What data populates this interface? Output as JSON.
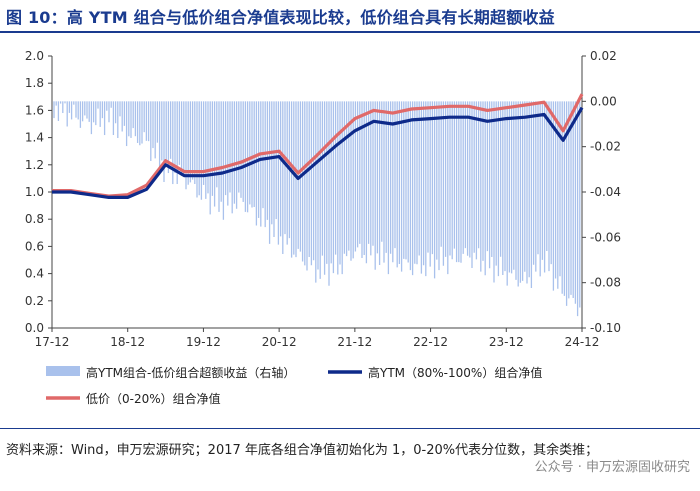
{
  "title": "图 10：高 YTM 组合与低价组合净值表现比较，低价组合具有长期超额收益",
  "source_note": "资料来源：Wind，申万宏源研究；2017 年底各组合净值初始化为 1，0-20%代表分位数，其余类推；",
  "watermark": "公众号 · 申万宏源固收研究",
  "chart_data": {
    "type": "line",
    "x_tick_labels": [
      "17-12",
      "18-12",
      "19-12",
      "20-12",
      "21-12",
      "22-12",
      "23-12",
      "24-12"
    ],
    "y_left": {
      "ticks": [
        "0.0",
        "0.2",
        "0.4",
        "0.6",
        "0.8",
        "1.0",
        "1.2",
        "1.4",
        "1.6",
        "1.8",
        "2.0"
      ],
      "ylim": [
        0,
        2.0
      ]
    },
    "y_right": {
      "ticks": [
        "-0.10",
        "-0.08",
        "-0.06",
        "-0.04",
        "-0.02",
        "0.00",
        "0.02"
      ],
      "ylim": [
        -0.1,
        0.02
      ]
    },
    "x": [
      0,
      0.25,
      0.5,
      0.75,
      1,
      1.25,
      1.5,
      1.75,
      2,
      2.25,
      2.5,
      2.75,
      3,
      3.25,
      3.5,
      3.75,
      4,
      4.25,
      4.5,
      4.75,
      5,
      5.25,
      5.5,
      5.75,
      6,
      6.25,
      6.5,
      6.75,
      7
    ],
    "series": [
      {
        "name": "高YTM组合-低价组合超额收益（右轴）",
        "axis": "right",
        "style": "bar",
        "color": "#a9c1ec",
        "values": [
          -0.002,
          -0.006,
          -0.01,
          -0.008,
          -0.015,
          -0.018,
          -0.03,
          -0.034,
          -0.042,
          -0.046,
          -0.044,
          -0.052,
          -0.06,
          -0.068,
          -0.075,
          -0.074,
          -0.066,
          -0.068,
          -0.07,
          -0.073,
          -0.072,
          -0.07,
          -0.068,
          -0.072,
          -0.076,
          -0.08,
          -0.07,
          -0.085,
          -0.092
        ]
      },
      {
        "name": "高YTM（80%-100%）组合净值",
        "axis": "left",
        "style": "line",
        "color": "#0e2a8a",
        "values": [
          1.0,
          1.0,
          0.98,
          0.96,
          0.96,
          1.02,
          1.2,
          1.12,
          1.12,
          1.14,
          1.18,
          1.24,
          1.26,
          1.1,
          1.22,
          1.34,
          1.45,
          1.52,
          1.5,
          1.53,
          1.54,
          1.55,
          1.55,
          1.52,
          1.54,
          1.55,
          1.57,
          1.38,
          1.62
        ]
      },
      {
        "name": "低价（0-20%）组合净值",
        "axis": "left",
        "style": "line",
        "color": "#e06969",
        "values": [
          1.01,
          1.01,
          0.99,
          0.97,
          0.98,
          1.05,
          1.23,
          1.15,
          1.15,
          1.18,
          1.22,
          1.28,
          1.3,
          1.14,
          1.27,
          1.41,
          1.54,
          1.6,
          1.58,
          1.61,
          1.62,
          1.63,
          1.63,
          1.6,
          1.62,
          1.64,
          1.66,
          1.45,
          1.72
        ]
      }
    ],
    "legend": [
      "高YTM组合-低价组合超额收益（右轴）",
      "高YTM（80%-100%）组合净值",
      "低价（0-20%）组合净值"
    ],
    "legend_position": "bottom",
    "grid": false
  }
}
